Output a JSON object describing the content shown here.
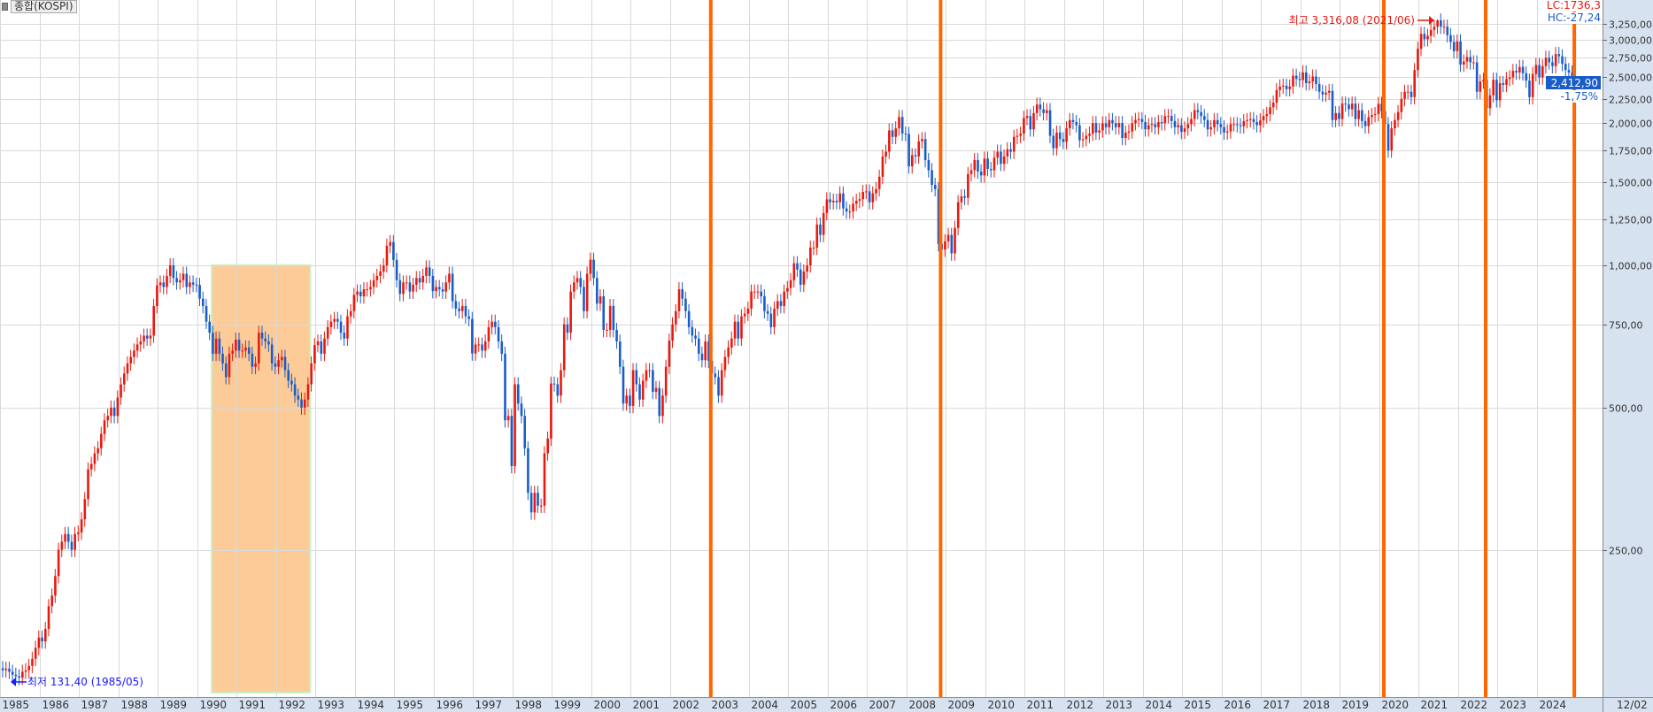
{
  "title": "종합(KOSPI)",
  "indicators": {
    "lc": "LC:1736,3",
    "hc": "HC:-27,24"
  },
  "current": {
    "price": "2,412,90",
    "change": "-1,75%"
  },
  "annotations": {
    "high": "최고 3,316,08 (2021/06)",
    "low": "최저 131,40 (1985/05)"
  },
  "last_date_label": "12/02",
  "colors": {
    "up": "#e8190f",
    "down": "#1a5cc8",
    "marker": "#ff6600",
    "highlight": "#fccb97",
    "axis_bg": "#d6e2f0",
    "price_box": "#1a5cc8"
  },
  "chart_data": {
    "type": "candlestick",
    "interval": "monthly",
    "start": "1985-01",
    "y_scale": "log",
    "ylim": [
      125,
      3400
    ],
    "grid": true,
    "y_ticks": [
      "250,00",
      "500,00",
      "750,00",
      "1,000,00",
      "1,250,00",
      "1,500,00",
      "1,750,00",
      "2,000,00",
      "2,250,00",
      "2,500,00",
      "2,750,00",
      "3,000,00",
      "3,250,00"
    ],
    "y_tick_values": [
      250,
      500,
      750,
      1000,
      1250,
      1500,
      1750,
      2000,
      2250,
      2500,
      2750,
      3000,
      3250
    ],
    "x_ticks": [
      "1985",
      "1986",
      "1987",
      "1988",
      "1989",
      "1990",
      "1991",
      "1992",
      "1993",
      "1994",
      "1995",
      "1996",
      "1997",
      "1998",
      "1999",
      "2000",
      "2001",
      "2002",
      "2003",
      "2004",
      "2005",
      "2006",
      "2007",
      "2008",
      "2009",
      "2010",
      "2011",
      "2012",
      "2013",
      "2014",
      "2015",
      "2016",
      "2017",
      "2018",
      "2019",
      "2020",
      "2021",
      "2022",
      "2023",
      "2024"
    ],
    "high_point": {
      "value": 3316.08,
      "date": "2021-06"
    },
    "low_point": {
      "value": 131.4,
      "date": "1985-05"
    },
    "vertical_markers": [
      "2003-01",
      "2008-11",
      "2020-02",
      "2022-09",
      "2024-12"
    ],
    "highlight_range": {
      "from": "1990-05",
      "to": "1992-11",
      "upper": 1000
    },
    "closes": [
      139,
      140,
      138,
      136,
      135,
      134,
      138,
      139,
      142,
      147,
      155,
      163,
      160,
      170,
      190,
      200,
      220,
      250,
      260,
      270,
      260,
      250,
      270,
      272,
      290,
      320,
      370,
      380,
      400,
      410,
      440,
      470,
      480,
      500,
      480,
      525,
      560,
      590,
      620,
      640,
      660,
      680,
      690,
      710,
      700,
      710,
      820,
      907,
      920,
      900,
      950,
      1000,
      940,
      920,
      930,
      960,
      900,
      920,
      910,
      909,
      850,
      820,
      760,
      720,
      650,
      700,
      650,
      620,
      580,
      650,
      660,
      696,
      660,
      660,
      670,
      650,
      610,
      620,
      720,
      700,
      690,
      680,
      620,
      610,
      630,
      640,
      600,
      570,
      560,
      530,
      520,
      500,
      520,
      560,
      620,
      678,
      690,
      650,
      700,
      740,
      760,
      770,
      760,
      720,
      700,
      780,
      800,
      866,
      880,
      860,
      890,
      890,
      900,
      930,
      950,
      970,
      1000,
      1100,
      1120,
      1027,
      930,
      870,
      920,
      920,
      880,
      910,
      940,
      920,
      950,
      990,
      950,
      882,
      900,
      890,
      880,
      920,
      960,
      840,
      810,
      800,
      820,
      780,
      770,
      651,
      680,
      680,
      660,
      690,
      740,
      760,
      740,
      690,
      650,
      470,
      480,
      376,
      560,
      510,
      480,
      410,
      330,
      300,
      330,
      310,
      310,
      400,
      430,
      562,
      560,
      530,
      600,
      750,
      720,
      880,
      920,
      940,
      900,
      800,
      960,
      1028,
      940,
      830,
      860,
      730,
      730,
      820,
      730,
      690,
      610,
      510,
      530,
      504,
      600,
      560,
      520,
      570,
      600,
      600,
      540,
      550,
      480,
      530,
      610,
      693,
      750,
      800,
      890,
      850,
      800,
      740,
      710,
      700,
      650,
      630,
      690,
      628,
      590,
      580,
      530,
      600,
      640,
      670,
      700,
      760,
      700,
      780,
      790,
      810,
      880,
      880,
      880,
      860,
      800,
      790,
      740,
      810,
      840,
      820,
      880,
      895,
      930,
      1010,
      980,
      910,
      970,
      1000,
      1090,
      1090,
      1220,
      1160,
      1290,
      1379,
      1360,
      1370,
      1360,
      1420,
      1320,
      1300,
      1300,
      1350,
      1370,
      1380,
      1430,
      1434,
      1360,
      1420,
      1450,
      1540,
      1700,
      1740,
      1930,
      1870,
      1950,
      2060,
      1900,
      1897,
      1620,
      1710,
      1700,
      1830,
      1850,
      1670,
      1590,
      1480,
      1450,
      1110,
      1080,
      1124,
      1160,
      1060,
      1200,
      1360,
      1400,
      1390,
      1560,
      1590,
      1670,
      1580,
      1550,
      1682,
      1600,
      1590,
      1690,
      1740,
      1640,
      1700,
      1760,
      1740,
      1870,
      1880,
      1900,
      2051,
      2070,
      1940,
      2100,
      2190,
      2140,
      2100,
      2130,
      1880,
      1770,
      1910,
      1850,
      1825,
      1950,
      2030,
      2010,
      1980,
      1840,
      1850,
      1880,
      1900,
      2000,
      1910,
      1930,
      1997,
      1960,
      2030,
      2000,
      1960,
      2000,
      1860,
      1910,
      1920,
      2000,
      2030,
      2040,
      2011,
      1940,
      1980,
      1990,
      1960,
      2010,
      2000,
      2070,
      2070,
      2020,
      1960,
      1980,
      1916,
      1950,
      1990,
      2040,
      2130,
      2110,
      2070,
      2030,
      1940,
      1960,
      2030,
      1990,
      1961,
      1910,
      1920,
      1990,
      1990,
      1980,
      1970,
      2020,
      2030,
      2040,
      2010,
      1980,
      2026,
      2070,
      2090,
      2160,
      2210,
      2350,
      2390,
      2400,
      2360,
      2390,
      2520,
      2480,
      2467,
      2560,
      2430,
      2450,
      2510,
      2420,
      2330,
      2300,
      2320,
      2340,
      2030,
      2100,
      2041,
      2200,
      2190,
      2140,
      2200,
      2040,
      2130,
      2020,
      1970,
      2060,
      2080,
      2090,
      2197,
      2120,
      1990,
      1750,
      1950,
      2030,
      2110,
      2250,
      2330,
      2330,
      2270,
      2590,
      2873,
      3090,
      3010,
      3060,
      3150,
      3200,
      3300,
      3200,
      3200,
      3070,
      2970,
      2840,
      2978,
      2660,
      2700,
      2760,
      2690,
      2690,
      2330,
      2450,
      2470,
      2150,
      2290,
      2470,
      2236,
      2430,
      2410,
      2480,
      2500,
      2580,
      2560,
      2630,
      2550,
      2460,
      2270,
      2540,
      2655,
      2500,
      2640,
      2750,
      2690,
      2640,
      2800,
      2770,
      2670,
      2590,
      2560,
      2455,
      2412.9
    ]
  }
}
